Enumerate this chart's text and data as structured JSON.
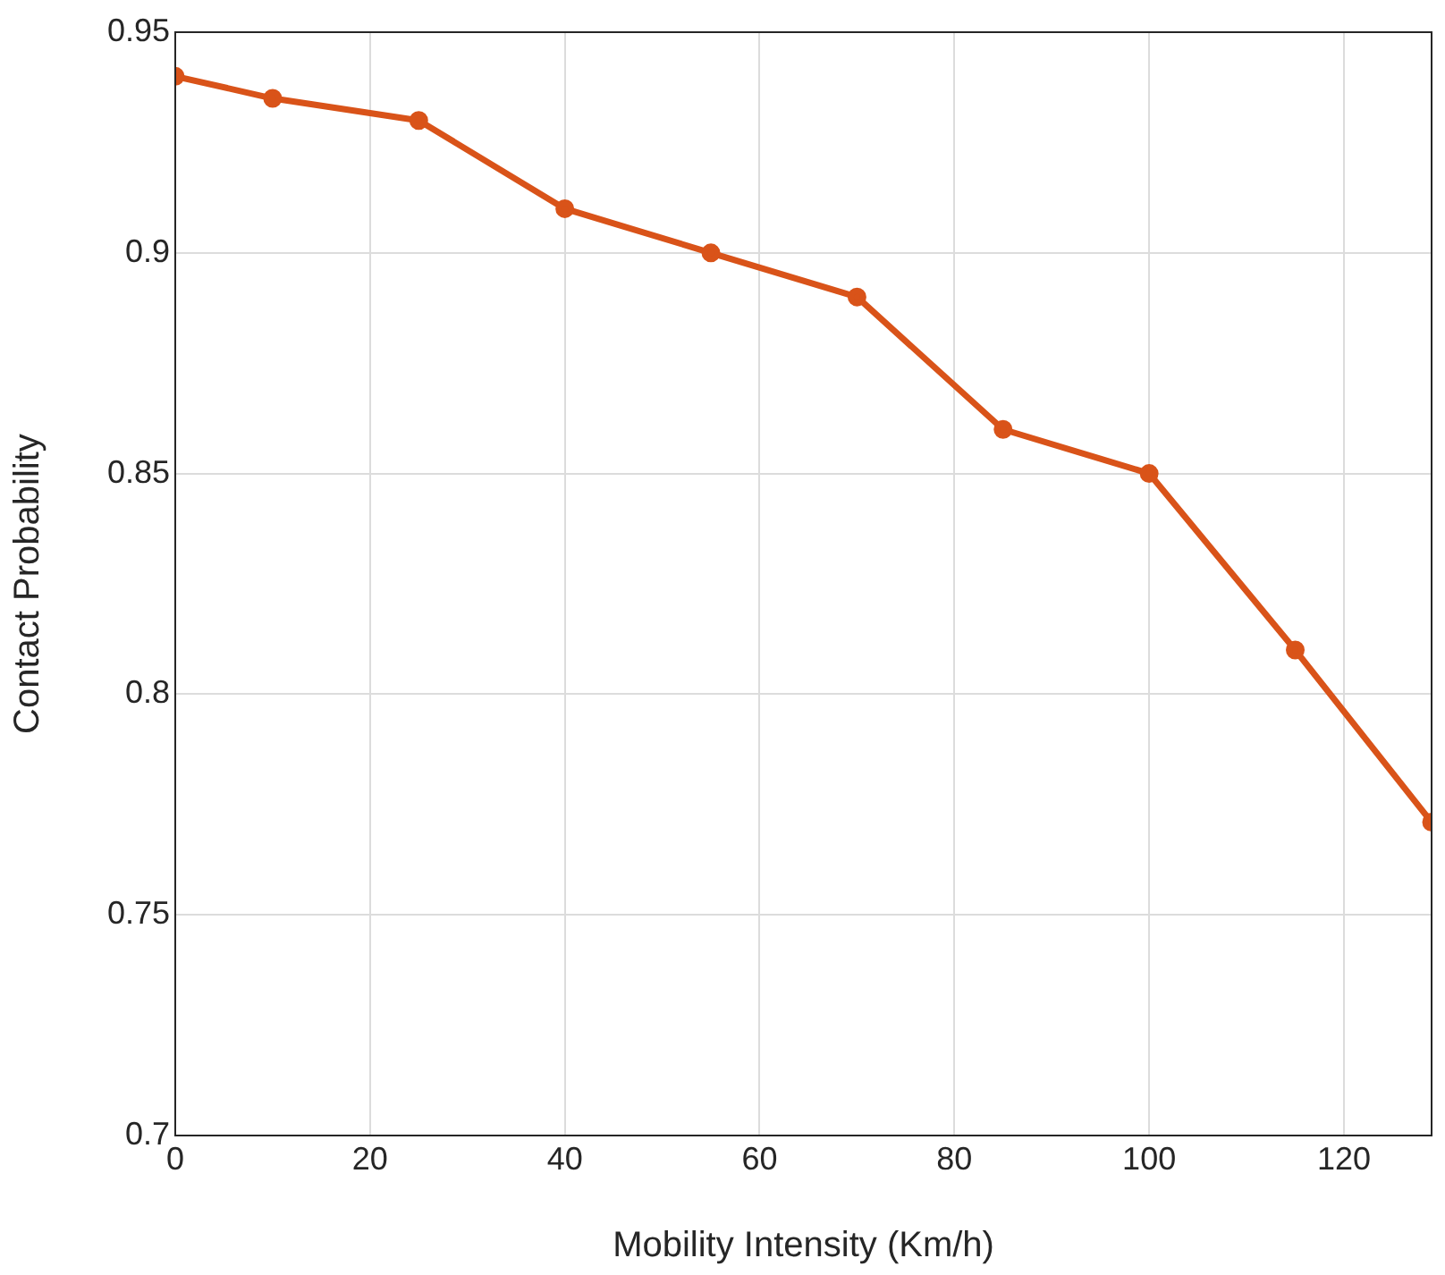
{
  "chart_data": {
    "type": "line",
    "xlabel": "Mobility Intensity (Km/h)",
    "ylabel": "Contact Probability",
    "x": [
      0,
      10,
      25,
      40,
      55,
      70,
      85,
      100,
      115,
      129
    ],
    "series": [
      {
        "color": "#d95319",
        "values": [
          0.94,
          0.935,
          0.93,
          0.91,
          0.9,
          0.89,
          0.86,
          0.85,
          0.81,
          0.771
        ]
      }
    ],
    "xlim": [
      0,
      129
    ],
    "xticks": [
      0,
      20,
      40,
      60,
      80,
      100,
      120
    ],
    "ylim": [
      0.7,
      0.95
    ],
    "yticks": [
      0.7,
      0.75,
      0.8,
      0.85,
      0.9,
      0.95
    ],
    "grid": true,
    "legend": false,
    "marker": "circle",
    "line_style": "solid"
  }
}
